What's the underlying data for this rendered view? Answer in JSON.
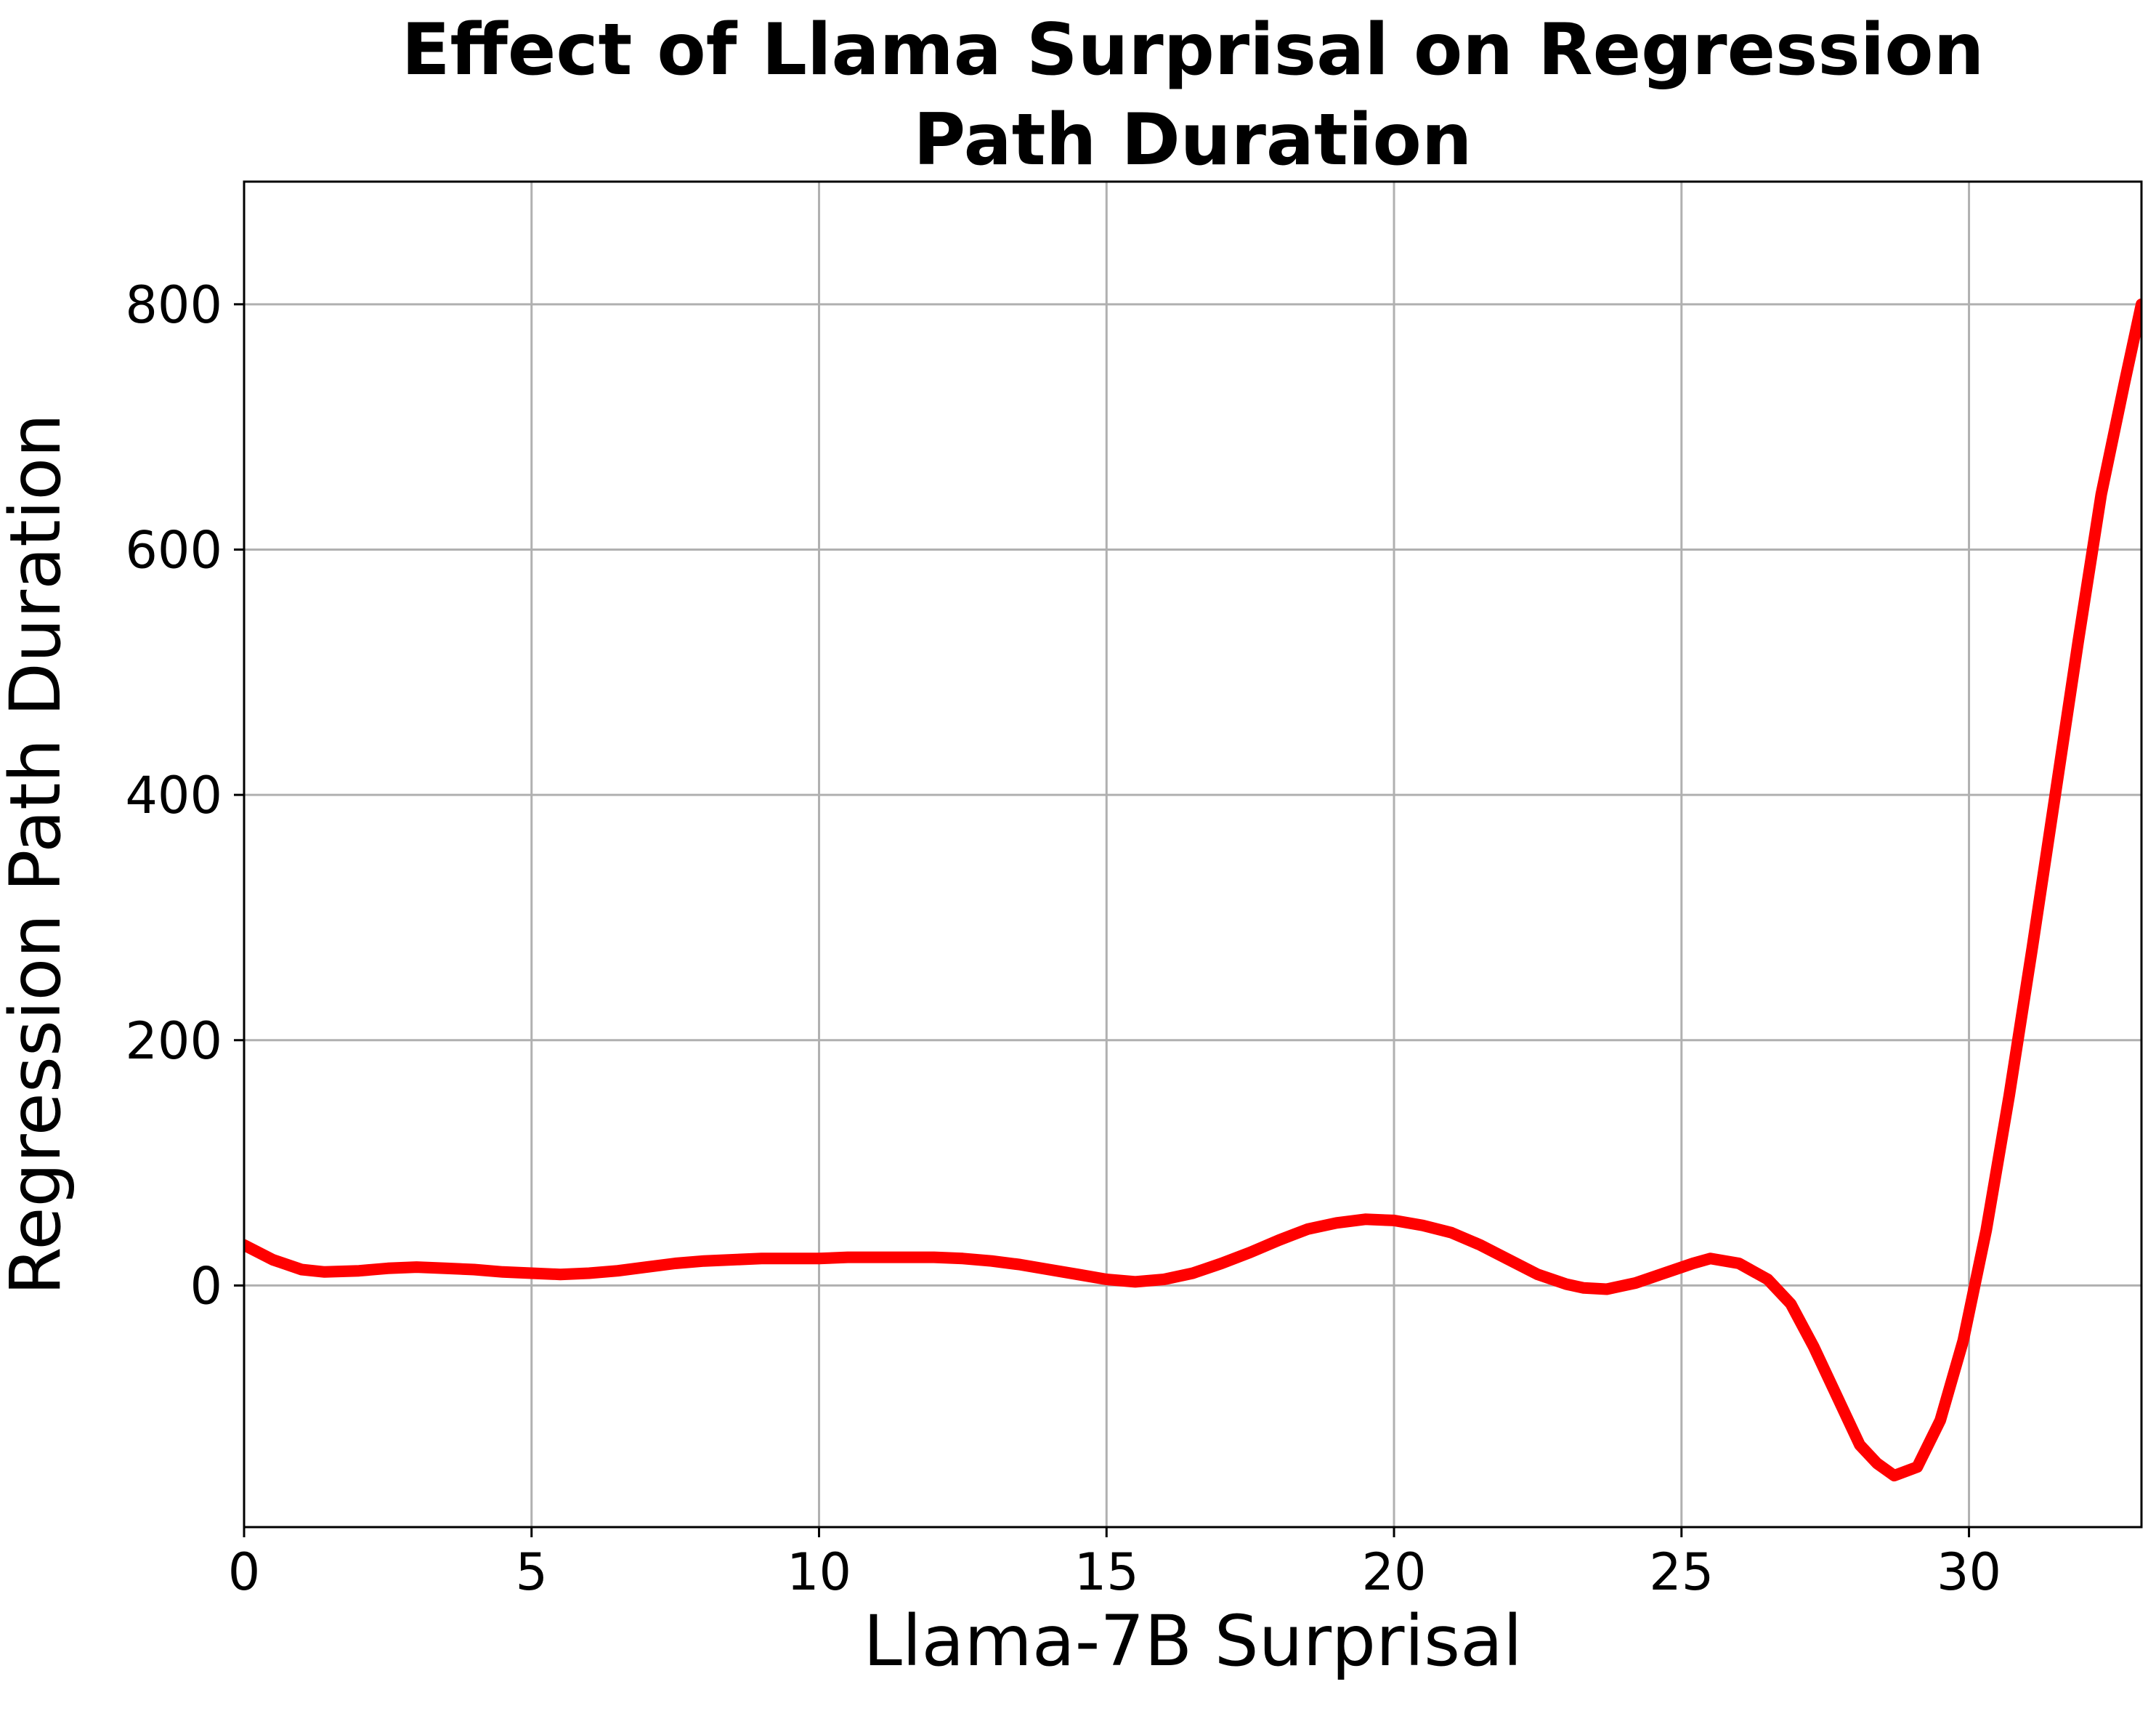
{
  "chart_data": {
    "type": "line",
    "title_lines": [
      "Effect of Llama Surprisal on Regression",
      "Path Duration"
    ],
    "xlabel": "Llama-7B Surprisal",
    "ylabel": "Regression Path Duration",
    "xlim": [
      0,
      33
    ],
    "ylim": [
      -197,
      900
    ],
    "xticks": [
      0,
      5,
      10,
      15,
      20,
      25,
      30
    ],
    "yticks": [
      0,
      200,
      400,
      600,
      800
    ],
    "grid": true,
    "line_color": "#ff0000",
    "series": [
      {
        "x": [
          0,
          0.5,
          1,
          1.4,
          2,
          2.5,
          3,
          3.5,
          4,
          4.5,
          5,
          5.5,
          6,
          6.5,
          7,
          7.5,
          8,
          8.5,
          9,
          9.5,
          10,
          10.5,
          11,
          11.5,
          12,
          12.5,
          13,
          13.5,
          14,
          14.5,
          15,
          15.5,
          16,
          16.5,
          17,
          17.5,
          18,
          18.5,
          19,
          19.5,
          20,
          20.5,
          21,
          21.5,
          22,
          22.5,
          23,
          23.3,
          23.7,
          24.2,
          24.7,
          25.2,
          25.5,
          26,
          26.5,
          26.9,
          27.3,
          27.7,
          28.1,
          28.4,
          28.7,
          29.1,
          29.5,
          29.9,
          30.3,
          30.7,
          31.1,
          31.5,
          31.9,
          32.3,
          32.7,
          33
        ],
        "y": [
          33,
          21,
          13,
          11,
          12,
          14,
          15,
          14,
          13,
          11,
          10,
          9,
          10,
          12,
          15,
          18,
          20,
          21,
          22,
          22,
          22,
          23,
          23,
          23,
          23,
          22,
          20,
          17,
          13,
          9,
          5,
          3,
          5,
          10,
          18,
          27,
          37,
          46,
          51,
          54,
          53,
          49,
          43,
          33,
          21,
          9,
          1,
          -2,
          -3,
          2,
          10,
          18,
          22,
          18,
          5,
          -15,
          -50,
          -90,
          -130,
          -145,
          -155,
          -148,
          -110,
          -45,
          45,
          155,
          275,
          400,
          525,
          645,
          735,
          800
        ]
      }
    ]
  }
}
